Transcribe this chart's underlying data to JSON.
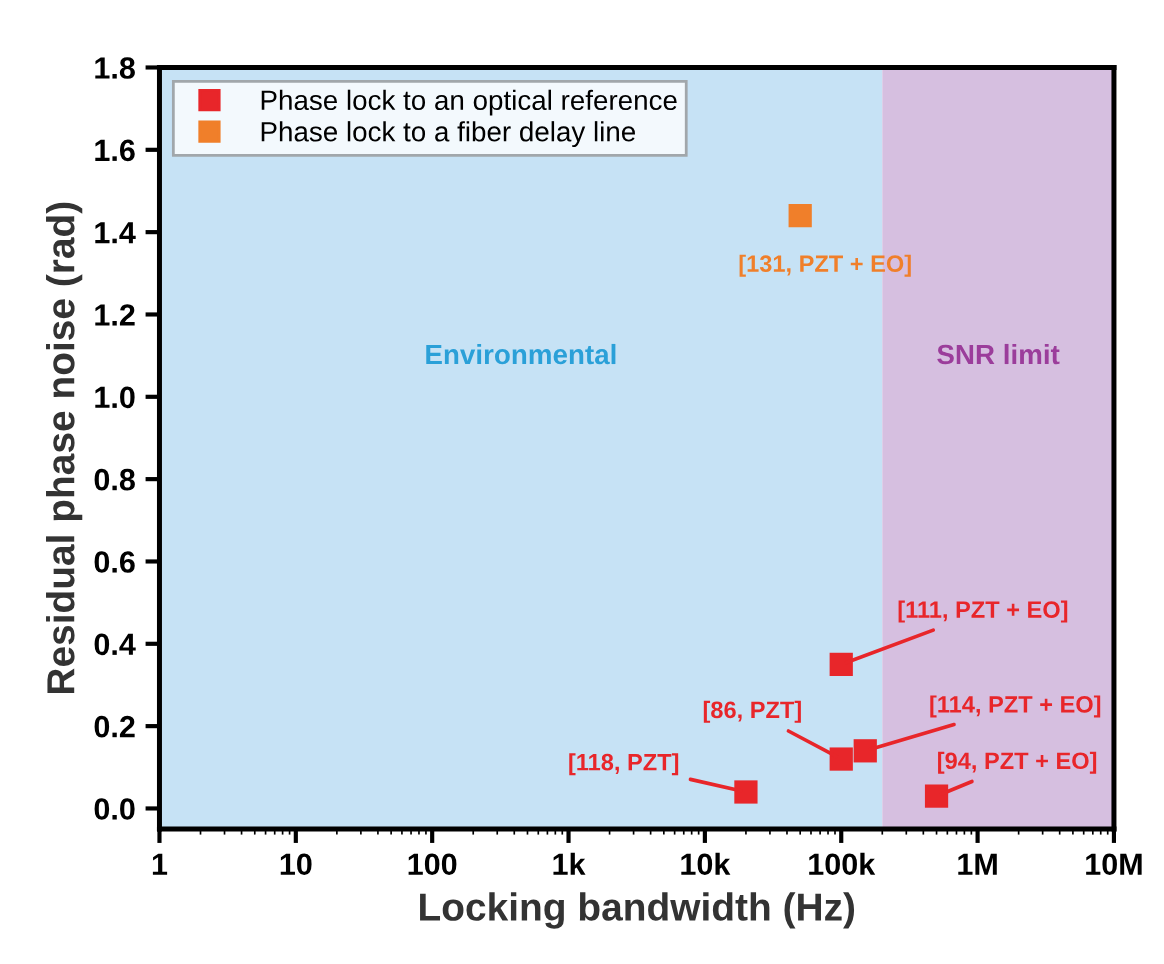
{
  "chart_data": {
    "type": "scatter",
    "xlabel": "Locking bandwidth (Hz)",
    "ylabel": "Residual phase noise (rad)",
    "log": "x",
    "marker": "square",
    "legend": "top left",
    "grid": false,
    "xlim": [
      1,
      10000000
    ],
    "ylim": [
      -0.05,
      1.8
    ],
    "xticks": [
      1,
      10,
      100,
      {
        "value": 1000,
        "label": "1k"
      },
      {
        "value": 10000,
        "label": "10k"
      },
      {
        "value": 100000,
        "label": "100k"
      },
      {
        "value": 1000000,
        "label": "1M"
      },
      {
        "value": 10000000,
        "label": "10M"
      }
    ],
    "yticks": [
      {
        "value": 0,
        "label": "0.0"
      },
      {
        "value": 0.2,
        "label": "0.2"
      },
      {
        "value": 0.4,
        "label": "0.4"
      },
      {
        "value": 0.6,
        "label": "0.6"
      },
      {
        "value": 0.8,
        "label": "0.8"
      },
      {
        "value": 1.0,
        "label": "1.0"
      },
      {
        "value": 1.2,
        "label": "1.2"
      },
      {
        "value": 1.4,
        "label": "1.4"
      },
      {
        "value": 1.6,
        "label": "1.6"
      },
      {
        "value": 1.8,
        "label": "1.8"
      }
    ],
    "series": [
      {
        "name": "Phase lock to an optical reference",
        "color": "#e8262a",
        "x": [
          100000,
          20000,
          150000,
          500000,
          100000
        ],
        "values": [
          0.35,
          0.04,
          0.14,
          0.03,
          0.12
        ]
      },
      {
        "name": "Phase lock to a fiber delay line",
        "color": "#f07f2a",
        "x": [
          50000
        ],
        "values": [
          1.44
        ]
      }
    ],
    "bands": [
      {
        "axis": "x",
        "from": 1,
        "to": 200000,
        "label": "Environmental",
        "color": "#c6e2f5"
      },
      {
        "axis": "x",
        "from": 200000,
        "to": 10000000,
        "label": "SNR limit",
        "color": "#d6bfe0"
      }
    ],
    "annotations": [
      {
        "text": "[131, PZT + EO]",
        "x": 50000,
        "y": 1.44
      },
      {
        "text": "[111, PZT + EO]",
        "x": 100000,
        "y": 0.35
      },
      {
        "text": "[86, PZT]",
        "x": 100000,
        "y": 0.12
      },
      {
        "text": "[114, PZT + EO]",
        "x": 150000,
        "y": 0.14
      },
      {
        "text": "[94, PZT + EO]",
        "x": 500000,
        "y": 0.03
      },
      {
        "text": "[118, PZT]",
        "x": 20000,
        "y": 0.04
      }
    ]
  }
}
